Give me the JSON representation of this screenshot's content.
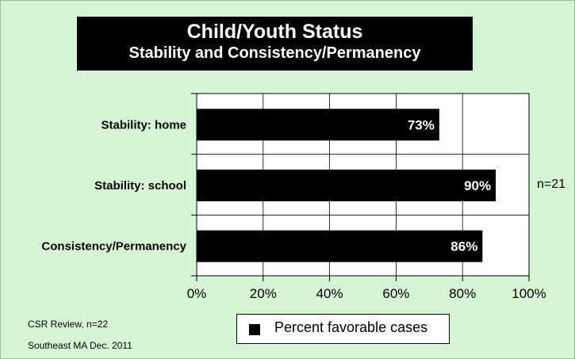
{
  "chart_data": {
    "type": "bar",
    "orientation": "horizontal",
    "title": "Child/Youth Status",
    "subtitle": "Stability and Consistency/Permanency",
    "categories": [
      "Stability: home",
      "Stability: school",
      "Consistency/Permanency"
    ],
    "series": [
      {
        "name": "Percent favorable cases",
        "values": [
          73,
          90,
          86
        ],
        "labels": [
          "73%",
          "90%",
          "86%"
        ],
        "color": "#000000"
      }
    ],
    "xlim": [
      0,
      100
    ],
    "xticks": [
      0,
      20,
      40,
      60,
      80,
      100
    ],
    "xtick_labels": [
      "0%",
      "20%",
      "40%",
      "60%",
      "80%",
      "100%"
    ],
    "grid": "vertical",
    "legend_position": "bottom",
    "background_color": "#d6f5d4",
    "plot_background": "#ffffff"
  },
  "annotations": {
    "n_note": "n=21",
    "footer_review": "CSR Review, n=22",
    "footer_region": "Southeast MA  Dec. 2011"
  }
}
